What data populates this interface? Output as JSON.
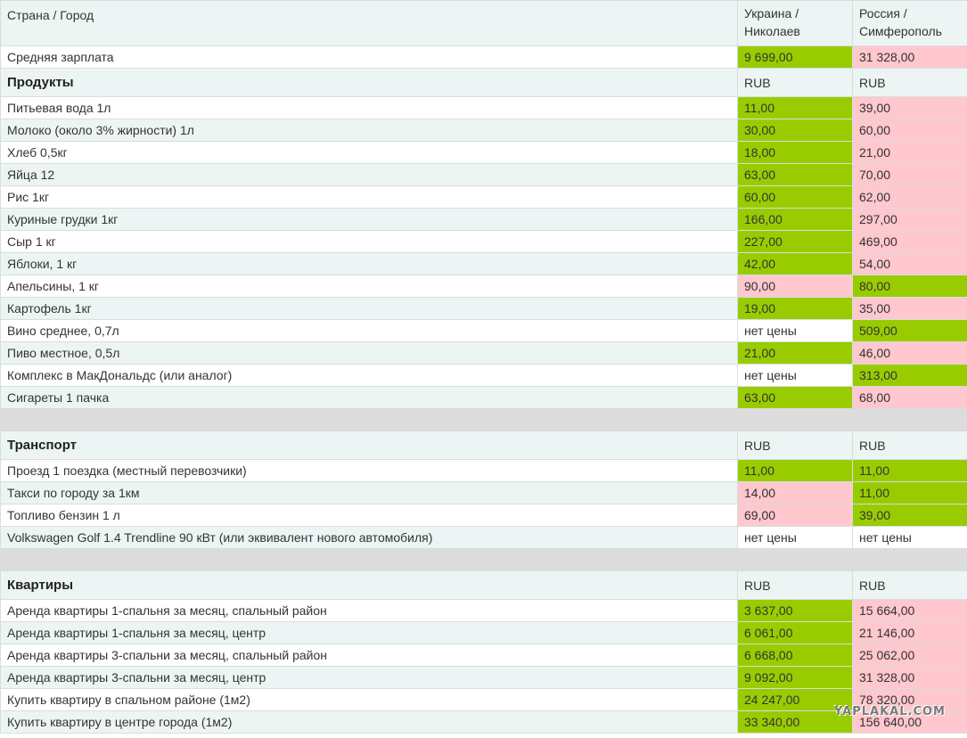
{
  "header": {
    "col0": "Страна / Город",
    "col1_line1": "Украина /",
    "col1_line2": "Николаев",
    "col2_line1": "Россия /",
    "col2_line2": "Симферополь"
  },
  "salary": {
    "label": "Средняя зарплата",
    "ua": "9 699,00",
    "ru": "31 328,00"
  },
  "sections": {
    "products": {
      "title": "Продукты",
      "currency": "RUB",
      "rows": [
        {
          "label": "Питьевая вода 1л",
          "ua": "11,00",
          "ru": "39,00"
        },
        {
          "label": "Молоко (около 3% жирности) 1л",
          "ua": "30,00",
          "ru": "60,00"
        },
        {
          "label": "Хлеб 0,5кг",
          "ua": "18,00",
          "ru": "21,00"
        },
        {
          "label": "Яйца 12",
          "ua": "63,00",
          "ru": "70,00"
        },
        {
          "label": "Рис 1кг",
          "ua": "60,00",
          "ru": "62,00"
        },
        {
          "label": "Куриные грудки 1кг",
          "ua": "166,00",
          "ru": "297,00"
        },
        {
          "label": "Сыр 1 кг",
          "ua": "227,00",
          "ru": "469,00"
        },
        {
          "label": "Яблоки, 1 кг",
          "ua": "42,00",
          "ru": "54,00"
        },
        {
          "label": "Апельсины, 1 кг",
          "ua": "90,00",
          "ru": "80,00"
        },
        {
          "label": "Картофель 1кг",
          "ua": "19,00",
          "ru": "35,00"
        },
        {
          "label": "Вино среднее, 0,7л",
          "ua": "нет цены",
          "ru": "509,00"
        },
        {
          "label": "Пиво местное, 0,5л",
          "ua": "21,00",
          "ru": "46,00"
        },
        {
          "label": "Комплекс в МакДональдс (или аналог)",
          "ua": "нет цены",
          "ru": "313,00"
        },
        {
          "label": "Сигареты 1 пачка",
          "ua": "63,00",
          "ru": "68,00"
        }
      ]
    },
    "transport": {
      "title": "Транспорт",
      "currency": "RUB",
      "rows": [
        {
          "label": "Проезд 1 поездка (местный перевозчики)",
          "ua": "11,00",
          "ru": "11,00"
        },
        {
          "label": "Такси по городу за 1км",
          "ua": "14,00",
          "ru": "11,00"
        },
        {
          "label": "Топливо бензин 1 л",
          "ua": "69,00",
          "ru": "39,00"
        },
        {
          "label": "Volkswagen Golf 1.4 Trendline 90 кВт (или эквивалент нового автомобиля)",
          "ua": "нет цены",
          "ru": "нет цены"
        }
      ]
    },
    "apartments": {
      "title": "Квартиры",
      "currency": "RUB",
      "rows": [
        {
          "label": "Аренда квартиры 1-спальня за месяц, спальный район",
          "ua": "3 637,00",
          "ru": "15 664,00"
        },
        {
          "label": "Аренда квартиры 1-спальня за месяц, центр",
          "ua": "6 061,00",
          "ru": "21 146,00"
        },
        {
          "label": "Аренда квартиры 3-спальни за месяц, спальный район",
          "ua": "6 668,00",
          "ru": "25 062,00"
        },
        {
          "label": "Аренда квартиры 3-спальни за месяц, центр",
          "ua": "9 092,00",
          "ru": "31 328,00"
        },
        {
          "label": "Купить квартиру в спальном районе (1м2)",
          "ua": "24 247,00",
          "ru": "78 320,00"
        },
        {
          "label": "Купить квартиру в центре города (1м2)",
          "ua": "33 340,00",
          "ru": "156 640,00"
        }
      ]
    }
  },
  "colors": {
    "cheaper": "#99cc00",
    "pricier": "#ffc7ce",
    "spacer": "#dcdcdc",
    "row_alt": "#edf5f4"
  },
  "watermark": "YAPLAKAL.COM"
}
